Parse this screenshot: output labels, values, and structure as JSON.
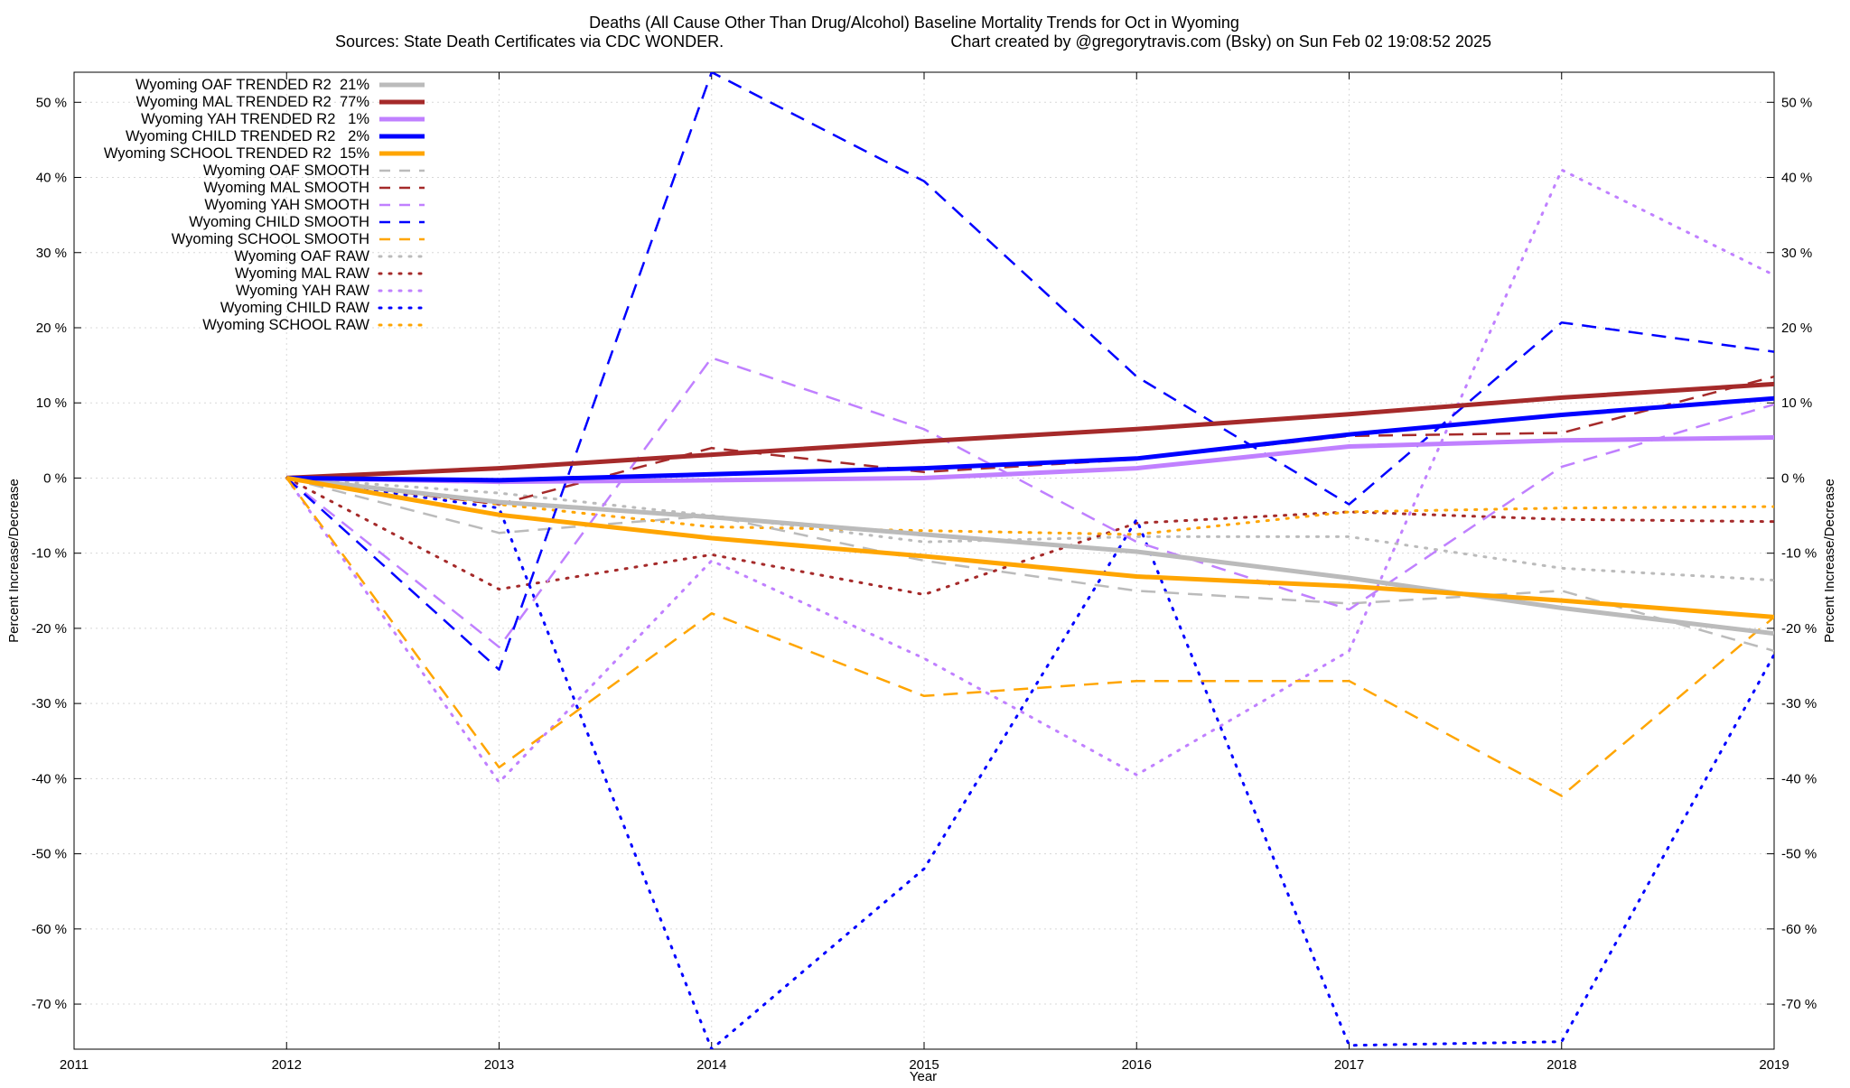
{
  "chart_data": {
    "type": "line",
    "title": "Deaths (All Cause Other Than Drug/Alcohol)  Baseline Mortality Trends for Oct in Wyoming",
    "subtitle_left": "Sources: State Death Certificates via CDC WONDER.",
    "subtitle_right": "Chart created by @gregorytravis.com (Bsky) on Sun Feb 02 19:08:52 2025",
    "xlabel": "Year",
    "ylabel": "Percent Increase/Decrease",
    "xlim": [
      2011,
      2019
    ],
    "ylim": [
      -76,
      54
    ],
    "x_ticks": [
      2011,
      2012,
      2013,
      2014,
      2015,
      2016,
      2017,
      2018,
      2019
    ],
    "y_ticks": [
      50,
      40,
      30,
      20,
      10,
      0,
      -10,
      -20,
      -30,
      -40,
      -50,
      -60,
      -70
    ],
    "y_tick_format": "{v} %",
    "grid": true,
    "legend_position": "top-left",
    "x": [
      2012,
      2013,
      2014,
      2015,
      2016,
      2017,
      2018,
      2019
    ],
    "series": [
      {
        "name": "Wyoming OAF TRENDED R2  21%",
        "style": "solid",
        "color": "#bbbbbb",
        "values": [
          0,
          -3.2,
          -5.2,
          -7.5,
          -9.8,
          -13.3,
          -17.3,
          -20.7
        ]
      },
      {
        "name": "Wyoming MAL TRENDED R2  77%",
        "style": "solid",
        "color": "#a52a2a",
        "values": [
          0,
          1.3,
          3.1,
          4.9,
          6.5,
          8.5,
          10.7,
          12.5
        ]
      },
      {
        "name": "Wyoming YAH TRENDED R2   1%",
        "style": "solid",
        "color": "#c080ff",
        "values": [
          0,
          -0.5,
          -0.3,
          0.0,
          1.3,
          4.2,
          5.0,
          5.4
        ]
      },
      {
        "name": "Wyoming CHILD TRENDED R2   2%",
        "style": "solid",
        "color": "#0000ff",
        "values": [
          0,
          -0.3,
          0.5,
          1.3,
          2.6,
          5.8,
          8.4,
          10.6
        ]
      },
      {
        "name": "Wyoming SCHOOL TRENDED R2  15%",
        "style": "solid",
        "color": "#ffa500",
        "values": [
          0,
          -4.9,
          -8.0,
          -10.4,
          -13.1,
          -14.4,
          -16.3,
          -18.5
        ]
      },
      {
        "name": "Wyoming OAF SMOOTH",
        "style": "dashed",
        "color": "#bbbbbb",
        "values": [
          0,
          -7.3,
          -5.0,
          -11.0,
          -15.0,
          -16.7,
          -15.0,
          -23.0
        ]
      },
      {
        "name": "Wyoming MAL SMOOTH",
        "style": "dashed",
        "color": "#a52a2a",
        "values": [
          0,
          -3.5,
          4.0,
          0.8,
          2.5,
          5.6,
          6.0,
          13.5
        ]
      },
      {
        "name": "Wyoming YAH SMOOTH",
        "style": "dashed",
        "color": "#c080ff",
        "values": [
          0,
          -22.5,
          16.0,
          6.5,
          -8.5,
          -17.5,
          1.5,
          9.8
        ]
      },
      {
        "name": "Wyoming CHILD SMOOTH",
        "style": "dashed",
        "color": "#0000ff",
        "values": [
          0,
          -25.5,
          54.0,
          39.5,
          13.5,
          -3.5,
          20.7,
          16.8
        ]
      },
      {
        "name": "Wyoming SCHOOL SMOOTH",
        "style": "dashed",
        "color": "#ffa500",
        "values": [
          0,
          -38.5,
          -18.0,
          -29.0,
          -27.0,
          -27.0,
          -42.3,
          -18.5
        ]
      },
      {
        "name": "Wyoming OAF RAW",
        "style": "dotted",
        "color": "#bbbbbb",
        "values": [
          0,
          -2.0,
          -5.0,
          -8.5,
          -7.8,
          -7.8,
          -12.0,
          -13.6
        ]
      },
      {
        "name": "Wyoming MAL RAW",
        "style": "dotted",
        "color": "#a52a2a",
        "values": [
          0,
          -14.8,
          -10.2,
          -15.5,
          -6.0,
          -4.5,
          -5.5,
          -5.8
        ]
      },
      {
        "name": "Wyoming YAH RAW",
        "style": "dotted",
        "color": "#c080ff",
        "values": [
          0,
          -40.5,
          -11.0,
          -24.0,
          -39.5,
          -23.0,
          41.0,
          27.0
        ]
      },
      {
        "name": "Wyoming CHILD RAW",
        "style": "dotted",
        "color": "#0000ff",
        "values": [
          0,
          -4.0,
          -76.0,
          -52.0,
          -5.5,
          -75.5,
          -75.0,
          -23.5
        ]
      },
      {
        "name": "Wyoming SCHOOL RAW",
        "style": "dotted",
        "color": "#ffa500",
        "values": [
          0,
          -3.5,
          -6.5,
          -7.0,
          -7.5,
          -4.5,
          -4.0,
          -3.8
        ]
      }
    ]
  }
}
